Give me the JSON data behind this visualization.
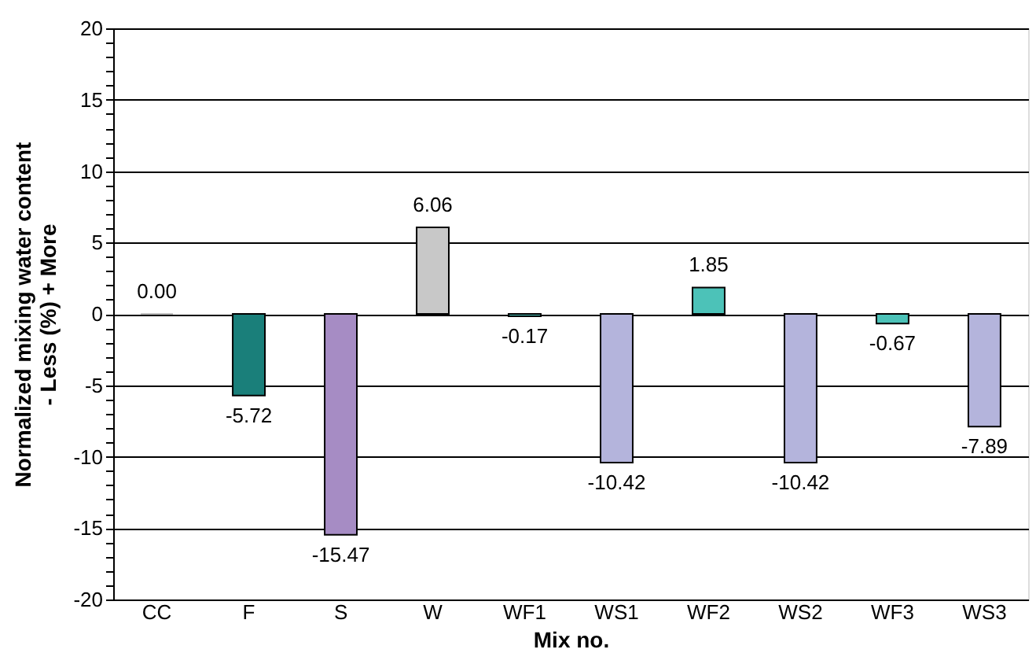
{
  "chart_data": {
    "type": "bar",
    "xlabel": "Mix no.",
    "ylabel": "Normalized mixing water content\n- Less   (%)   + More",
    "categories": [
      "CC",
      "F",
      "S",
      "W",
      "WF1",
      "WS1",
      "WF2",
      "WS2",
      "WF3",
      "WS3"
    ],
    "values": [
      0.0,
      -5.72,
      -15.47,
      6.06,
      -0.17,
      -10.42,
      1.85,
      -10.42,
      -0.67,
      -7.89
    ],
    "value_labels": [
      "0.00",
      "-5.72",
      "-15.47",
      "6.06",
      "-0.17",
      "-10.42",
      "1.85",
      "-10.42",
      "-0.67",
      "-7.89"
    ],
    "colors": [
      "#c0c0c0",
      "#1a7f7a",
      "#a68cc4",
      "#c8c8c8",
      "#4cc2b8",
      "#b4b4dc",
      "#4cc2b8",
      "#b4b4dc",
      "#4cc2b8",
      "#b4b4dc"
    ],
    "ylim": [
      -20,
      20
    ],
    "yticks": [
      -20,
      {
        "value": -19,
        "label": null
      },
      {
        "value": -18,
        "label": null
      },
      {
        "value": -17,
        "label": null
      },
      {
        "value": -16,
        "label": null
      },
      -15,
      {
        "value": -14,
        "label": null
      },
      {
        "value": -13,
        "label": null
      },
      {
        "value": -12,
        "label": null
      },
      {
        "value": -11,
        "label": null
      },
      -10,
      {
        "value": -9,
        "label": null
      },
      {
        "value": -8,
        "label": null
      },
      {
        "value": -7,
        "label": null
      },
      {
        "value": -6,
        "label": null
      },
      -5,
      {
        "value": -4,
        "label": null
      },
      {
        "value": -3,
        "label": null
      },
      {
        "value": -2,
        "label": null
      },
      {
        "value": -1,
        "label": null
      },
      0,
      {
        "value": 1,
        "label": null
      },
      {
        "value": 2,
        "label": null
      },
      {
        "value": 3,
        "label": null
      },
      {
        "value": 4,
        "label": null
      },
      5,
      {
        "value": 6,
        "label": null
      },
      {
        "value": 7,
        "label": null
      },
      {
        "value": 8,
        "label": null
      },
      {
        "value": 9,
        "label": null
      },
      10,
      {
        "value": 11,
        "label": null
      },
      {
        "value": 12,
        "label": null
      },
      {
        "value": 13,
        "label": null
      },
      {
        "value": 14,
        "label": null
      },
      15,
      {
        "value": 16,
        "label": null
      },
      {
        "value": 17,
        "label": null
      },
      {
        "value": 18,
        "label": null
      },
      {
        "value": 19,
        "label": null
      },
      20
    ],
    "grid": "y",
    "legend": false
  }
}
